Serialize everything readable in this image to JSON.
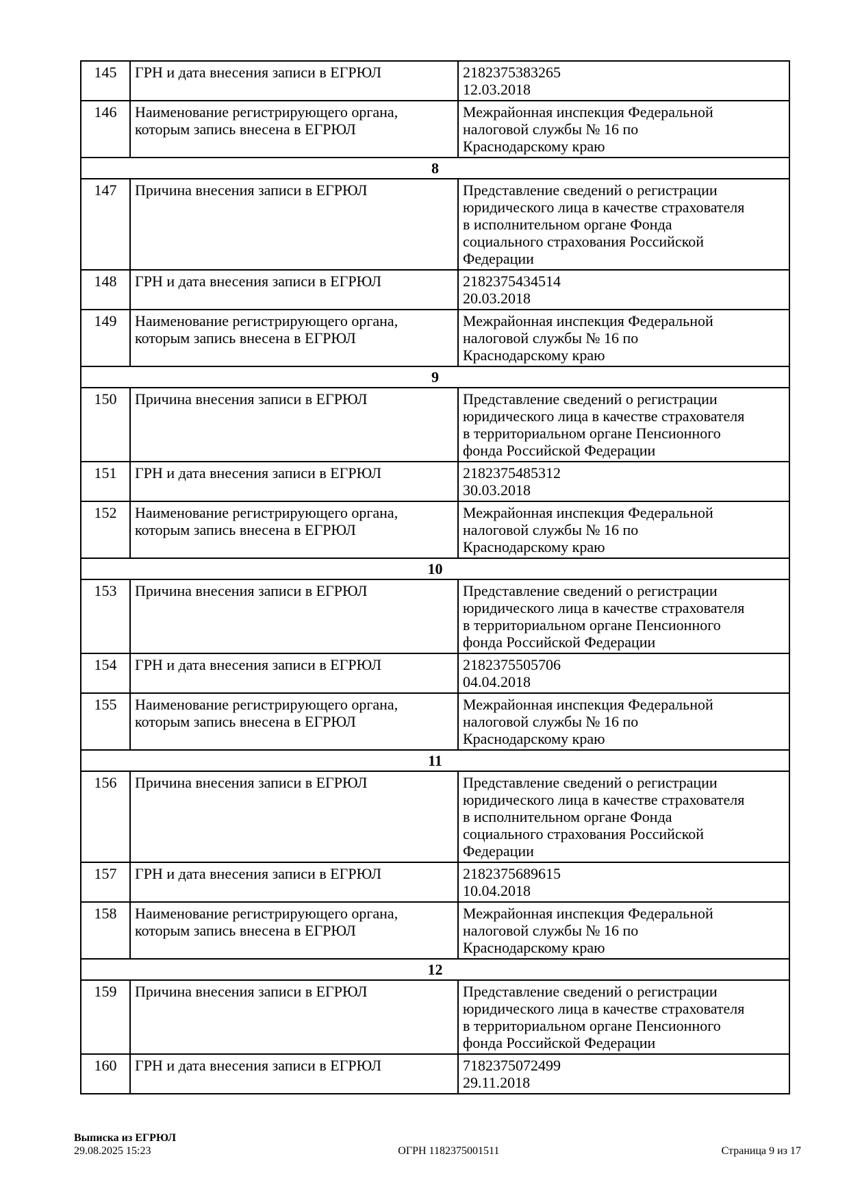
{
  "table": {
    "rows": [
      {
        "type": "data",
        "num": "145",
        "label": "ГРН и дата внесения записи в ЕГРЮЛ",
        "value": "2182375383265\n12.03.2018"
      },
      {
        "type": "data",
        "num": "146",
        "label": "Наименование регистрирующего органа,\nкоторым запись внесена в ЕГРЮЛ",
        "value": "Межрайонная инспекция Федеральной\nналоговой службы № 16 по\nКраснодарскому краю"
      },
      {
        "type": "section",
        "num": "8"
      },
      {
        "type": "data",
        "num": "147",
        "label": "Причина внесения записи в ЕГРЮЛ",
        "value": "Представление сведений о регистрации\nюридического лица в качестве страхователя\nв исполнительном органе Фонда\nсоциального страхования Российской\nФедерации"
      },
      {
        "type": "data",
        "num": "148",
        "label": "ГРН и дата внесения записи в ЕГРЮЛ",
        "value": "2182375434514\n20.03.2018"
      },
      {
        "type": "data",
        "num": "149",
        "label": "Наименование регистрирующего органа,\nкоторым запись внесена в ЕГРЮЛ",
        "value": "Межрайонная инспекция Федеральной\nналоговой службы № 16 по\nКраснодарскому краю"
      },
      {
        "type": "section",
        "num": "9"
      },
      {
        "type": "data",
        "num": "150",
        "label": "Причина внесения записи в ЕГРЮЛ",
        "value": "Представление сведений о регистрации\nюридического лица в качестве страхователя\nв территориальном органе Пенсионного\nфонда Российской Федерации"
      },
      {
        "type": "data",
        "num": "151",
        "label": "ГРН и дата внесения записи в ЕГРЮЛ",
        "value": "2182375485312\n30.03.2018"
      },
      {
        "type": "data",
        "num": "152",
        "label": "Наименование регистрирующего органа,\nкоторым запись внесена в ЕГРЮЛ",
        "value": "Межрайонная инспекция Федеральной\nналоговой службы № 16 по\nКраснодарскому краю"
      },
      {
        "type": "section",
        "num": "10"
      },
      {
        "type": "data",
        "num": "153",
        "label": "Причина внесения записи в ЕГРЮЛ",
        "value": "Представление сведений о регистрации\nюридического лица в качестве страхователя\nв территориальном органе Пенсионного\nфонда Российской Федерации"
      },
      {
        "type": "data",
        "num": "154",
        "label": "ГРН и дата внесения записи в ЕГРЮЛ",
        "value": "2182375505706\n04.04.2018"
      },
      {
        "type": "data",
        "num": "155",
        "label": "Наименование регистрирующего органа,\nкоторым запись внесена в ЕГРЮЛ",
        "value": "Межрайонная инспекция Федеральной\nналоговой службы № 16 по\nКраснодарскому краю"
      },
      {
        "type": "section",
        "num": "11"
      },
      {
        "type": "data",
        "num": "156",
        "label": "Причина внесения записи в ЕГРЮЛ",
        "value": "Представление сведений о регистрации\nюридического лица в качестве страхователя\nв исполнительном органе Фонда\nсоциального страхования Российской\nФедерации"
      },
      {
        "type": "data",
        "num": "157",
        "label": "ГРН и дата внесения записи в ЕГРЮЛ",
        "value": "2182375689615\n10.04.2018"
      },
      {
        "type": "data",
        "num": "158",
        "label": "Наименование регистрирующего органа,\nкоторым запись внесена в ЕГРЮЛ",
        "value": "Межрайонная инспекция Федеральной\nналоговой службы № 16 по\nКраснодарскому краю"
      },
      {
        "type": "section",
        "num": "12"
      },
      {
        "type": "data",
        "num": "159",
        "label": "Причина внесения записи в ЕГРЮЛ",
        "value": "Представление сведений о регистрации\nюридического лица в качестве страхователя\nв территориальном органе Пенсионного\nфонда Российской Федерации"
      },
      {
        "type": "data",
        "num": "160",
        "label": "ГРН и дата внесения записи в ЕГРЮЛ",
        "value": "7182375072499\n29.11.2018"
      }
    ]
  },
  "footer": {
    "doc_type": "Выписка из ЕГРЮЛ",
    "datetime": "29.08.2025 15:23",
    "ogrn": "ОГРН 1182375001511",
    "page": "Страница 9 из 17"
  }
}
